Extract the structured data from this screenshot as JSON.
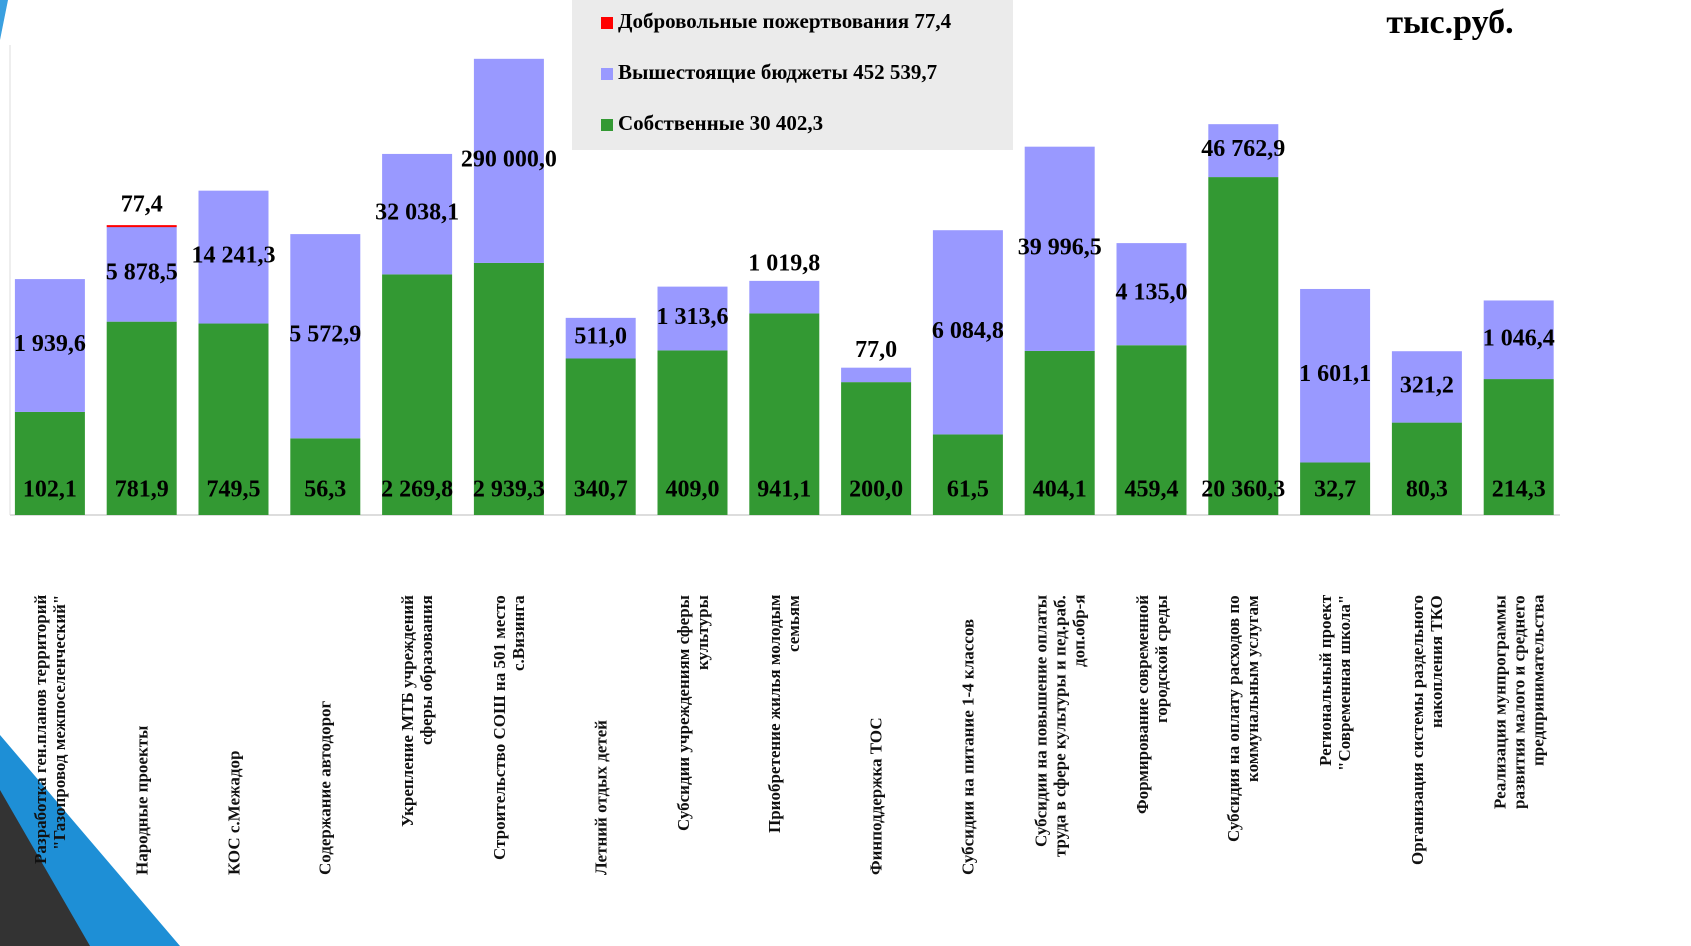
{
  "chart_data": {
    "type": "bar",
    "stacked": true,
    "log_scale": true,
    "unit": "тыс.руб.",
    "categories": [
      "Разработка ген.планов территорий \"Газопровод межпоселенческий\"",
      "Народные проекты",
      "КОС с.Межадор",
      "Содержание автодорог",
      "Укрепление МТБ учреждений сферы образования",
      "Строительство СОШ на 501 место с.Визинга",
      "Летний отдых детей",
      "Субсидии учреждениям сферы культуры",
      "Приобретение жилья молодым семьям",
      "Финподдержка ТОС",
      "Субсидии на питание 1-4 классов",
      "Субсидии на повышение оплаты труда в сфере культуры и пед.раб. доп.обр-я",
      "Формирование современной городской среды",
      "Субсидия на оплату расходов по коммунальным услугам",
      "Региональный проект \"Современная школа\"",
      "Организация системы раздельного накопления ТКО",
      "Реализация мунпрограммы развития малого и среднего предпринимательства"
    ],
    "series": [
      {
        "name": "Собственные   30 402,3",
        "color": "#339933",
        "values": [
          102.1,
          781.9,
          749.5,
          56.3,
          2269.8,
          2939.3,
          340.7,
          409.0,
          941.1,
          200.0,
          61.5,
          404.1,
          459.4,
          20360.3,
          32.7,
          80.3,
          214.3
        ],
        "value_labels": [
          "102,1",
          "781,9",
          "749,5",
          "56,3",
          "2 269,8",
          "2 939,3",
          "340,7",
          "409,0",
          "941,1",
          "200,0",
          "61,5",
          "404,1",
          "459,4",
          "20 360,3",
          "32,7",
          "80,3",
          "214,3"
        ]
      },
      {
        "name": "Вышестоящие бюджеты 452 539,7",
        "color": "#9999ff",
        "values": [
          1939.6,
          5878.5,
          14241.3,
          5572.9,
          32038.1,
          290000.0,
          511.0,
          1313.6,
          1019.8,
          77.0,
          6084.8,
          39996.5,
          4135.0,
          46762.9,
          1601.1,
          321.2,
          1046.4
        ],
        "value_labels": [
          "1 939,6",
          "5 878,5",
          "14 241,3",
          "5 572,9",
          "32 038,1",
          "290 000,0",
          "511,0",
          "1 313,6",
          "1 019,8",
          "77,0",
          "6 084,8",
          "39 996,5",
          "4 135,0",
          "46 762,9",
          "1 601,1",
          "321,2",
          "1 046,4"
        ]
      },
      {
        "name": "Добровольные пожертвования 77,4",
        "color": "#ff0000",
        "values": [
          null,
          77.4,
          null,
          null,
          null,
          null,
          null,
          null,
          null,
          null,
          null,
          null,
          null,
          null,
          null,
          null,
          null
        ],
        "value_labels": [
          null,
          "77,4",
          null,
          null,
          null,
          null,
          null,
          null,
          null,
          null,
          null,
          null,
          null,
          null,
          null,
          null,
          null
        ]
      }
    ],
    "ylim": [
      10,
      400000
    ]
  }
}
